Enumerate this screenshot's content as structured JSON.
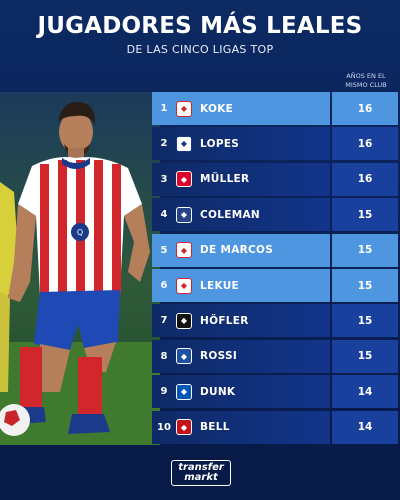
{
  "header": {
    "title": "JUGADORES MÁS LEALES",
    "subtitle": "DE LAS CINCO LIGAS TOP",
    "column_label": "AÑOS EN EL\nMISMO CLUB"
  },
  "players": [
    {
      "rank": "1",
      "name": "KOKE",
      "years": "16",
      "club_icon": "atletico-crest-icon",
      "highlight": true
    },
    {
      "rank": "2",
      "name": "LOPES",
      "years": "16",
      "club_icon": "lyon-crest-icon",
      "highlight": false
    },
    {
      "rank": "3",
      "name": "MÜLLER",
      "years": "16",
      "club_icon": "bayern-crest-icon",
      "highlight": false
    },
    {
      "rank": "4",
      "name": "COLEMAN",
      "years": "15",
      "club_icon": "everton-crest-icon",
      "highlight": false
    },
    {
      "rank": "5",
      "name": "DE MARCOS",
      "years": "15",
      "club_icon": "athletic-crest-icon",
      "highlight": true
    },
    {
      "rank": "6",
      "name": "LEKUE",
      "years": "15",
      "club_icon": "athletic-crest-icon",
      "highlight": true
    },
    {
      "rank": "7",
      "name": "HÖFLER",
      "years": "15",
      "club_icon": "freiburg-crest-icon",
      "highlight": false
    },
    {
      "rank": "8",
      "name": "ROSSI",
      "years": "15",
      "club_icon": "atalanta-crest-icon",
      "highlight": false
    },
    {
      "rank": "9",
      "name": "DUNK",
      "years": "14",
      "club_icon": "brighton-crest-icon",
      "highlight": false
    },
    {
      "rank": "10",
      "name": "BELL",
      "years": "14",
      "club_icon": "mainz-crest-icon",
      "highlight": false
    }
  ],
  "logo": {
    "line1": "transfer",
    "line2": "markt"
  },
  "colors": {
    "highlight": "#4f96e0",
    "dark_row": "#13348a",
    "background": "#0a2157"
  }
}
